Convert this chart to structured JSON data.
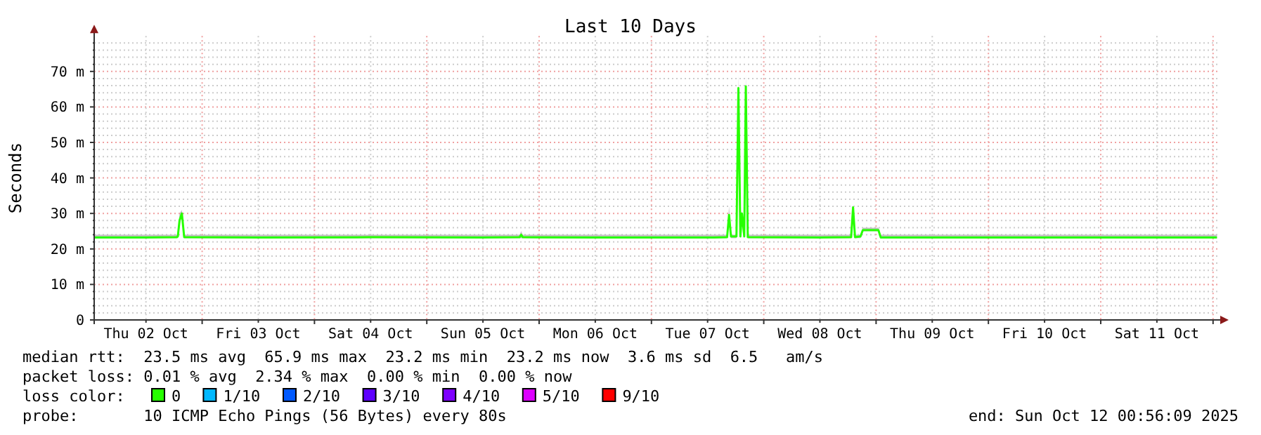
{
  "chart_data": {
    "type": "line",
    "title": "Last 10 Days",
    "ylabel": "Seconds",
    "legend_title": "loss color:",
    "legend": "bottom",
    "grid": true,
    "xlim": [
      "2025-10-02T00:56",
      "2025-10-12T00:56"
    ],
    "xticks": [
      {
        "value": "2025-10-02T12:00",
        "label": "Thu 02 Oct"
      },
      {
        "value": "2025-10-03T00:00",
        "label": null
      },
      {
        "value": "2025-10-03T12:00",
        "label": "Fri 03 Oct"
      },
      {
        "value": "2025-10-04T00:00",
        "label": null
      },
      {
        "value": "2025-10-04T12:00",
        "label": "Sat 04 Oct"
      },
      {
        "value": "2025-10-05T00:00",
        "label": null
      },
      {
        "value": "2025-10-05T12:00",
        "label": "Sun 05 Oct"
      },
      {
        "value": "2025-10-06T00:00",
        "label": null
      },
      {
        "value": "2025-10-06T12:00",
        "label": "Mon 06 Oct"
      },
      {
        "value": "2025-10-07T00:00",
        "label": null
      },
      {
        "value": "2025-10-07T12:00",
        "label": "Tue 07 Oct"
      },
      {
        "value": "2025-10-08T00:00",
        "label": null
      },
      {
        "value": "2025-10-08T12:00",
        "label": "Wed 08 Oct"
      },
      {
        "value": "2025-10-09T00:00",
        "label": null
      },
      {
        "value": "2025-10-09T12:00",
        "label": "Thu 09 Oct"
      },
      {
        "value": "2025-10-10T00:00",
        "label": null
      },
      {
        "value": "2025-10-10T12:00",
        "label": "Fri 10 Oct"
      },
      {
        "value": "2025-10-11T00:00",
        "label": null
      },
      {
        "value": "2025-10-11T12:00",
        "label": "Sat 11 Oct"
      },
      {
        "value": "2025-10-12T00:00",
        "label": null
      }
    ],
    "ylim": [
      0,
      80
    ],
    "yticks": [
      0,
      {
        "value": 2,
        "label": null
      },
      {
        "value": 4,
        "label": null
      },
      {
        "value": 6,
        "label": null
      },
      {
        "value": 8,
        "label": null
      },
      {
        "value": 10,
        "label": "10 m"
      },
      {
        "value": 12,
        "label": null
      },
      {
        "value": 14,
        "label": null
      },
      {
        "value": 16,
        "label": null
      },
      {
        "value": 18,
        "label": null
      },
      {
        "value": 20,
        "label": "20 m"
      },
      {
        "value": 22,
        "label": null
      },
      {
        "value": 24,
        "label": null
      },
      {
        "value": 26,
        "label": null
      },
      {
        "value": 28,
        "label": null
      },
      {
        "value": 30,
        "label": "30 m"
      },
      {
        "value": 32,
        "label": null
      },
      {
        "value": 34,
        "label": null
      },
      {
        "value": 36,
        "label": null
      },
      {
        "value": 38,
        "label": null
      },
      {
        "value": 40,
        "label": "40 m"
      },
      {
        "value": 42,
        "label": null
      },
      {
        "value": 44,
        "label": null
      },
      {
        "value": 46,
        "label": null
      },
      {
        "value": 48,
        "label": null
      },
      {
        "value": 50,
        "label": "50 m"
      },
      {
        "value": 52,
        "label": null
      },
      {
        "value": 54,
        "label": null
      },
      {
        "value": 56,
        "label": null
      },
      {
        "value": 58,
        "label": null
      },
      {
        "value": 60,
        "label": "60 m"
      },
      {
        "value": 62,
        "label": null
      },
      {
        "value": 64,
        "label": null
      },
      {
        "value": 66,
        "label": null
      },
      {
        "value": 68,
        "label": null
      },
      {
        "value": 70,
        "label": "70 m"
      },
      {
        "value": 72,
        "label": null
      },
      {
        "value": 74,
        "label": null
      },
      {
        "value": 76,
        "label": null
      },
      {
        "value": 78,
        "label": null
      }
    ],
    "x": [
      "2025-10-02T01:00",
      "2025-10-02T12:00",
      "2025-10-02T18:30",
      "2025-10-02T18:48",
      "2025-10-02T19:10",
      "2025-10-02T19:40",
      "2025-10-02T20:10",
      "2025-10-03T12:00",
      "2025-10-04T12:00",
      "2025-10-05T12:00",
      "2025-10-05T19:50",
      "2025-10-05T20:10",
      "2025-10-05T20:30",
      "2025-10-06T12:00",
      "2025-10-07T12:00",
      "2025-10-07T16:10",
      "2025-10-07T16:35",
      "2025-10-07T17:00",
      "2025-10-07T18:10",
      "2025-10-07T18:35",
      "2025-10-07T19:00",
      "2025-10-07T19:20",
      "2025-10-07T19:50",
      "2025-10-07T20:10",
      "2025-10-07T20:35",
      "2025-10-08T12:00",
      "2025-10-08T18:40",
      "2025-10-08T19:05",
      "2025-10-08T19:30",
      "2025-10-08T20:40",
      "2025-10-08T21:10",
      "2025-10-09T00:30",
      "2025-10-09T01:00",
      "2025-10-10T12:00",
      "2025-10-11T12:00",
      "2025-10-12T00:50"
    ],
    "series": [
      {
        "name": "0",
        "color": "#26ff00",
        "values": [
          23.2,
          23.2,
          23.3,
          23.5,
          28,
          30,
          23.3,
          23.2,
          23.3,
          23.2,
          23.3,
          24,
          23.3,
          23.2,
          23.2,
          23.3,
          29.6,
          23.5,
          23.5,
          65.3,
          23.5,
          30,
          23.5,
          65.8,
          23.3,
          23.2,
          23.3,
          31.7,
          23.3,
          23.5,
          25.3,
          25.3,
          23.2,
          23.2,
          23.2,
          23.2
        ],
        "lower": [
          23,
          23,
          23,
          23,
          27,
          29,
          23,
          23,
          23,
          23,
          23,
          23,
          23,
          23,
          23,
          23,
          28,
          23,
          23,
          64,
          23,
          29,
          23,
          64,
          23,
          23,
          23,
          30,
          23,
          23,
          25,
          25,
          23,
          23,
          23,
          23
        ],
        "upper": [
          24,
          24,
          24,
          24,
          30,
          31,
          24,
          24,
          24,
          24,
          24,
          25,
          24,
          24,
          24,
          24,
          32,
          24,
          24,
          69,
          24,
          31,
          24,
          69,
          24,
          24,
          24,
          32,
          24,
          24,
          26,
          26,
          24,
          24,
          24,
          24
        ]
      },
      {
        "name": "1/10",
        "color": "#00b8ff",
        "values": [
          null,
          null,
          null,
          null,
          null,
          null,
          null,
          null,
          null,
          null,
          null,
          null,
          null,
          null,
          null,
          null,
          null,
          null,
          null,
          null,
          null,
          null,
          null,
          null,
          null,
          null,
          null,
          null,
          null,
          null,
          null,
          null,
          null,
          null,
          null,
          null
        ]
      },
      {
        "name": "2/10",
        "color": "#0059ff",
        "values": [
          null,
          null,
          null,
          null,
          null,
          null,
          null,
          null,
          null,
          null,
          null,
          null,
          null,
          null,
          null,
          null,
          null,
          null,
          null,
          null,
          null,
          null,
          null,
          null,
          null,
          null,
          null,
          null,
          null,
          null,
          null,
          null,
          null,
          null,
          null,
          null
        ]
      },
      {
        "name": "3/10",
        "color": "#5e00ff",
        "values": [
          null,
          null,
          null,
          null,
          null,
          null,
          null,
          null,
          null,
          null,
          null,
          null,
          null,
          null,
          null,
          null,
          null,
          null,
          null,
          null,
          null,
          null,
          null,
          null,
          null,
          null,
          null,
          null,
          null,
          null,
          null,
          null,
          null,
          null,
          null,
          null
        ]
      },
      {
        "name": "4/10",
        "color": "#7e00ff",
        "values": [
          null,
          null,
          null,
          null,
          null,
          null,
          null,
          null,
          null,
          null,
          null,
          null,
          null,
          null,
          null,
          null,
          null,
          null,
          null,
          null,
          null,
          null,
          null,
          null,
          null,
          null,
          null,
          null,
          null,
          null,
          null,
          null,
          null,
          null,
          null,
          null
        ]
      },
      {
        "name": "5/10",
        "color": "#dd00ff",
        "values": [
          null,
          null,
          null,
          null,
          null,
          null,
          null,
          null,
          null,
          null,
          null,
          null,
          null,
          null,
          null,
          null,
          null,
          null,
          null,
          null,
          null,
          null,
          null,
          null,
          null,
          null,
          null,
          null,
          null,
          null,
          null,
          null,
          null,
          null,
          null,
          null
        ]
      },
      {
        "name": "9/10",
        "color": "#ff0000",
        "values": [
          null,
          null,
          null,
          null,
          null,
          null,
          null,
          null,
          null,
          null,
          null,
          null,
          null,
          null,
          null,
          null,
          null,
          null,
          null,
          null,
          null,
          null,
          null,
          null,
          null,
          null,
          null,
          null,
          null,
          null,
          null,
          null,
          null,
          null,
          null,
          null
        ]
      }
    ],
    "annotations": [
      "median rtt:  23.5 ms avg  65.9 ms max  23.2 ms min  23.2 ms now  3.6 ms sd  6.5   am/s",
      "packet loss: 0.01 % avg  2.34 % max  0.00 % min  0.00 % now",
      "probe:       10 ICMP Echo Pings (56 Bytes) every 80s",
      "end: Sun Oct 12 00:56:09 2025"
    ]
  }
}
